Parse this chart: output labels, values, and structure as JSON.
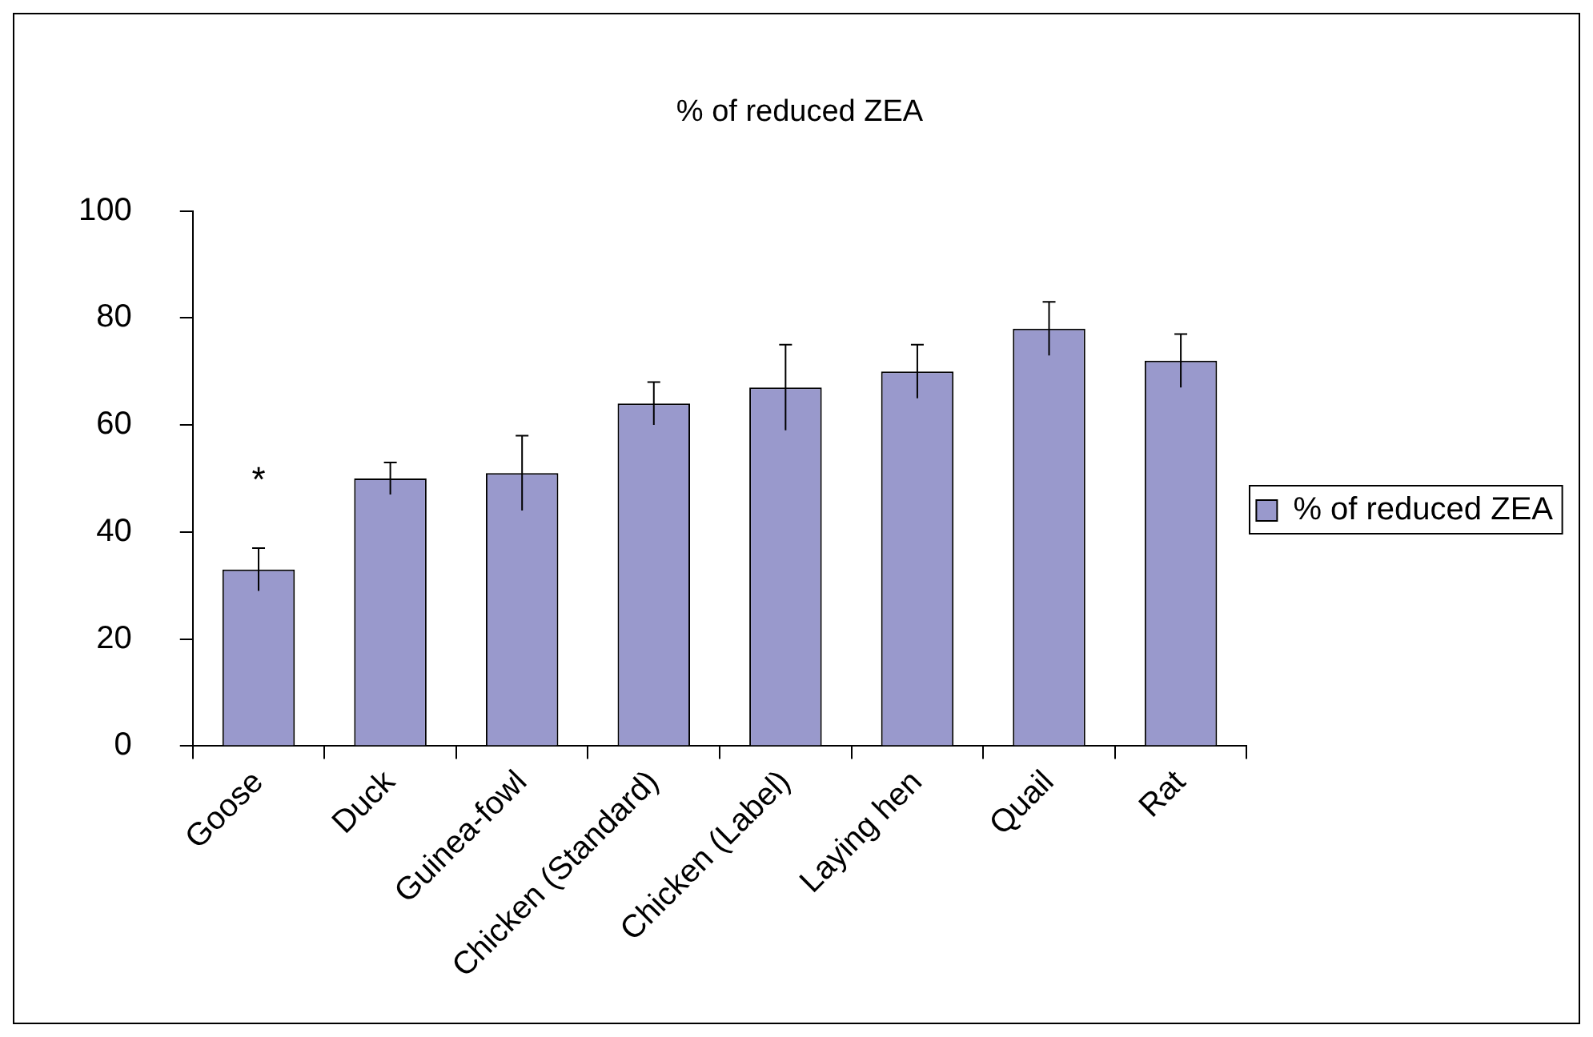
{
  "chart_data": {
    "type": "bar",
    "title": "% of reduced ZEA",
    "categories": [
      "Goose",
      "Duck",
      "Guinea-fowl",
      "Chicken (Standard)",
      "Chicken (Label)",
      "Laying hen",
      "Quail",
      "Rat"
    ],
    "series": [
      {
        "name": "% of reduced ZEA",
        "color": "#9999cc",
        "values": [
          33,
          50,
          51,
          64,
          67,
          70,
          78,
          72
        ],
        "errors": [
          4,
          3,
          7,
          4,
          8,
          5,
          5,
          5
        ]
      }
    ],
    "ylim": [
      0,
      100
    ],
    "yticks": [
      0,
      20,
      40,
      60,
      80,
      100
    ],
    "grid": false,
    "legend": "right",
    "annotations": [
      "*"
    ]
  }
}
